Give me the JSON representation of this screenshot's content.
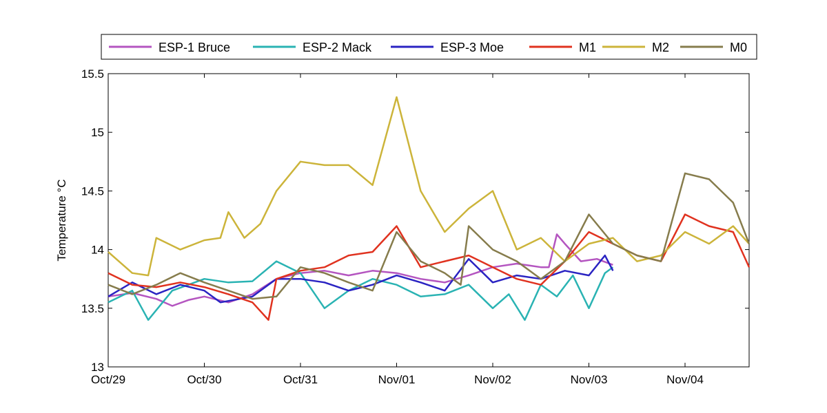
{
  "chart_data": {
    "type": "line",
    "title": "",
    "xlabel": "",
    "ylabel": "Temperature °C",
    "ylim": [
      13,
      15.5
    ],
    "xlim": [
      "2000-10-29 00:00",
      "2000-11-04 16:00"
    ],
    "grid": false,
    "legend_placement": "top, horizontal above plot",
    "x_ticks": [
      {
        "date": "2000-10-29 00:00",
        "label": "Oct/29"
      },
      {
        "date": "2000-10-30 00:00",
        "label": "Oct/30"
      },
      {
        "date": "2000-10-31 00:00",
        "label": "Oct/31"
      },
      {
        "date": "2000-11-01 00:00",
        "label": "Nov/01"
      },
      {
        "date": "2000-11-02 00:00",
        "label": "Nov/02"
      },
      {
        "date": "2000-11-03 00:00",
        "label": "Nov/03"
      },
      {
        "date": "2000-11-04 00:00",
        "label": "Nov/04"
      }
    ],
    "y_ticks": [
      {
        "value": 13,
        "label": "13"
      },
      {
        "value": 13.5,
        "label": "13.5"
      },
      {
        "value": 14,
        "label": "14"
      },
      {
        "value": 14.5,
        "label": "14.5"
      },
      {
        "value": 15,
        "label": "15"
      },
      {
        "value": 15.5,
        "label": "15.5"
      }
    ],
    "series": [
      {
        "name": "ESP-1 Bruce",
        "color": "#b455c0",
        "x": [
          "2000-10-29 00:00",
          "2000-10-29 06:00",
          "2000-10-29 12:00",
          "2000-10-29 16:00",
          "2000-10-29 20:00",
          "2000-10-30 00:00",
          "2000-10-30 06:00",
          "2000-10-30 12:00",
          "2000-10-30 18:00",
          "2000-10-31 00:00",
          "2000-10-31 06:00",
          "2000-10-31 12:00",
          "2000-10-31 18:00",
          "2000-11-01 00:00",
          "2000-11-01 06:00",
          "2000-11-01 12:00",
          "2000-11-01 18:00",
          "2000-11-02 00:00",
          "2000-11-02 06:00",
          "2000-11-02 12:00",
          "2000-11-02 14:00",
          "2000-11-02 16:00",
          "2000-11-02 18:00",
          "2000-11-02 22:00",
          "2000-11-03 02:00",
          "2000-11-03 06:00"
        ],
        "y": [
          13.6,
          13.63,
          13.58,
          13.52,
          13.57,
          13.6,
          13.55,
          13.62,
          13.75,
          13.8,
          13.82,
          13.78,
          13.82,
          13.8,
          13.75,
          13.72,
          13.78,
          13.85,
          13.88,
          13.85,
          13.85,
          14.13,
          14.05,
          13.9,
          13.92,
          13.87
        ]
      },
      {
        "name": "ESP-2 Mack",
        "color": "#2ab3b3",
        "x": [
          "2000-10-29 00:00",
          "2000-10-29 06:00",
          "2000-10-29 10:00",
          "2000-10-29 16:00",
          "2000-10-30 00:00",
          "2000-10-30 06:00",
          "2000-10-30 12:00",
          "2000-10-30 18:00",
          "2000-10-31 00:00",
          "2000-10-31 06:00",
          "2000-10-31 12:00",
          "2000-10-31 18:00",
          "2000-11-01 00:00",
          "2000-11-01 06:00",
          "2000-11-01 12:00",
          "2000-11-01 18:00",
          "2000-11-02 00:00",
          "2000-11-02 04:00",
          "2000-11-02 08:00",
          "2000-11-02 12:00",
          "2000-11-02 16:00",
          "2000-11-02 20:00",
          "2000-11-03 00:00",
          "2000-11-03 04:00",
          "2000-11-03 06:00"
        ],
        "y": [
          13.55,
          13.65,
          13.4,
          13.65,
          13.75,
          13.72,
          13.73,
          13.9,
          13.8,
          13.5,
          13.65,
          13.75,
          13.7,
          13.6,
          13.62,
          13.7,
          13.5,
          13.62,
          13.4,
          13.7,
          13.6,
          13.78,
          13.5,
          13.8,
          13.85
        ]
      },
      {
        "name": "ESP-3 Moe",
        "color": "#2a23c2",
        "x": [
          "2000-10-29 00:00",
          "2000-10-29 06:00",
          "2000-10-29 12:00",
          "2000-10-29 18:00",
          "2000-10-30 00:00",
          "2000-10-30 04:00",
          "2000-10-30 12:00",
          "2000-10-30 18:00",
          "2000-10-31 00:00",
          "2000-10-31 06:00",
          "2000-10-31 12:00",
          "2000-10-31 18:00",
          "2000-11-01 00:00",
          "2000-11-01 06:00",
          "2000-11-01 12:00",
          "2000-11-01 18:00",
          "2000-11-02 00:00",
          "2000-11-02 06:00",
          "2000-11-02 12:00",
          "2000-11-02 18:00",
          "2000-11-03 00:00",
          "2000-11-03 04:00",
          "2000-11-03 06:00"
        ],
        "y": [
          13.6,
          13.72,
          13.62,
          13.7,
          13.65,
          13.55,
          13.6,
          13.75,
          13.75,
          13.72,
          13.65,
          13.7,
          13.78,
          13.72,
          13.65,
          13.92,
          13.72,
          13.78,
          13.75,
          13.82,
          13.78,
          13.95,
          13.82
        ]
      },
      {
        "name": "M1",
        "color": "#e0321f",
        "x": [
          "2000-10-29 00:00",
          "2000-10-29 06:00",
          "2000-10-29 12:00",
          "2000-10-29 18:00",
          "2000-10-30 00:00",
          "2000-10-30 06:00",
          "2000-10-30 12:00",
          "2000-10-30 16:00",
          "2000-10-30 18:00",
          "2000-10-31 00:00",
          "2000-10-31 06:00",
          "2000-10-31 12:00",
          "2000-10-31 18:00",
          "2000-11-01 00:00",
          "2000-11-01 06:00",
          "2000-11-01 12:00",
          "2000-11-01 18:00",
          "2000-11-02 00:00",
          "2000-11-02 06:00",
          "2000-11-02 12:00",
          "2000-11-02 18:00",
          "2000-11-03 00:00",
          "2000-11-03 06:00",
          "2000-11-03 12:00",
          "2000-11-03 18:00",
          "2000-11-04 00:00",
          "2000-11-04 06:00",
          "2000-11-04 12:00",
          "2000-11-04 16:00"
        ],
        "y": [
          13.8,
          13.7,
          13.68,
          13.72,
          13.68,
          13.62,
          13.55,
          13.4,
          13.75,
          13.82,
          13.85,
          13.95,
          13.98,
          14.2,
          13.85,
          13.9,
          13.95,
          13.85,
          13.75,
          13.7,
          13.9,
          14.15,
          14.05,
          13.95,
          13.9,
          14.3,
          14.2,
          14.15,
          13.85
        ]
      },
      {
        "name": "M2",
        "color": "#ccb43a",
        "x": [
          "2000-10-29 00:00",
          "2000-10-29 06:00",
          "2000-10-29 10:00",
          "2000-10-29 12:00",
          "2000-10-29 18:00",
          "2000-10-30 00:00",
          "2000-10-30 04:00",
          "2000-10-30 06:00",
          "2000-10-30 10:00",
          "2000-10-30 14:00",
          "2000-10-30 18:00",
          "2000-10-31 00:00",
          "2000-10-31 06:00",
          "2000-10-31 12:00",
          "2000-10-31 18:00",
          "2000-11-01 00:00",
          "2000-11-01 06:00",
          "2000-11-01 12:00",
          "2000-11-01 18:00",
          "2000-11-02 00:00",
          "2000-11-02 06:00",
          "2000-11-02 12:00",
          "2000-11-02 18:00",
          "2000-11-03 00:00",
          "2000-11-03 06:00",
          "2000-11-03 12:00",
          "2000-11-03 18:00",
          "2000-11-04 00:00",
          "2000-11-04 06:00",
          "2000-11-04 12:00",
          "2000-11-04 16:00"
        ],
        "y": [
          13.98,
          13.8,
          13.78,
          14.1,
          14.0,
          14.08,
          14.1,
          14.32,
          14.1,
          14.22,
          14.5,
          14.75,
          14.72,
          14.72,
          14.55,
          15.3,
          14.5,
          14.15,
          14.35,
          14.5,
          14.0,
          14.1,
          13.9,
          14.05,
          14.1,
          13.9,
          13.95,
          14.15,
          14.05,
          14.2,
          14.05
        ]
      },
      {
        "name": "M0",
        "color": "#867c4c",
        "x": [
          "2000-10-29 00:00",
          "2000-10-29 06:00",
          "2000-10-29 12:00",
          "2000-10-29 18:00",
          "2000-10-30 00:00",
          "2000-10-30 06:00",
          "2000-10-30 12:00",
          "2000-10-30 18:00",
          "2000-10-31 00:00",
          "2000-10-31 06:00",
          "2000-10-31 12:00",
          "2000-10-31 18:00",
          "2000-11-01 00:00",
          "2000-11-01 06:00",
          "2000-11-01 12:00",
          "2000-11-01 16:00",
          "2000-11-01 18:00",
          "2000-11-02 00:00",
          "2000-11-02 06:00",
          "2000-11-02 12:00",
          "2000-11-02 18:00",
          "2000-11-03 00:00",
          "2000-11-03 06:00",
          "2000-11-03 12:00",
          "2000-11-03 18:00",
          "2000-11-04 00:00",
          "2000-11-04 06:00",
          "2000-11-04 12:00",
          "2000-11-04 16:00"
        ],
        "y": [
          13.7,
          13.62,
          13.7,
          13.8,
          13.72,
          13.65,
          13.58,
          13.6,
          13.85,
          13.8,
          13.72,
          13.65,
          14.15,
          13.9,
          13.8,
          13.7,
          14.2,
          14.0,
          13.9,
          13.75,
          13.9,
          14.3,
          14.05,
          13.95,
          13.9,
          14.65,
          14.6,
          14.4,
          14.05
        ]
      }
    ]
  }
}
